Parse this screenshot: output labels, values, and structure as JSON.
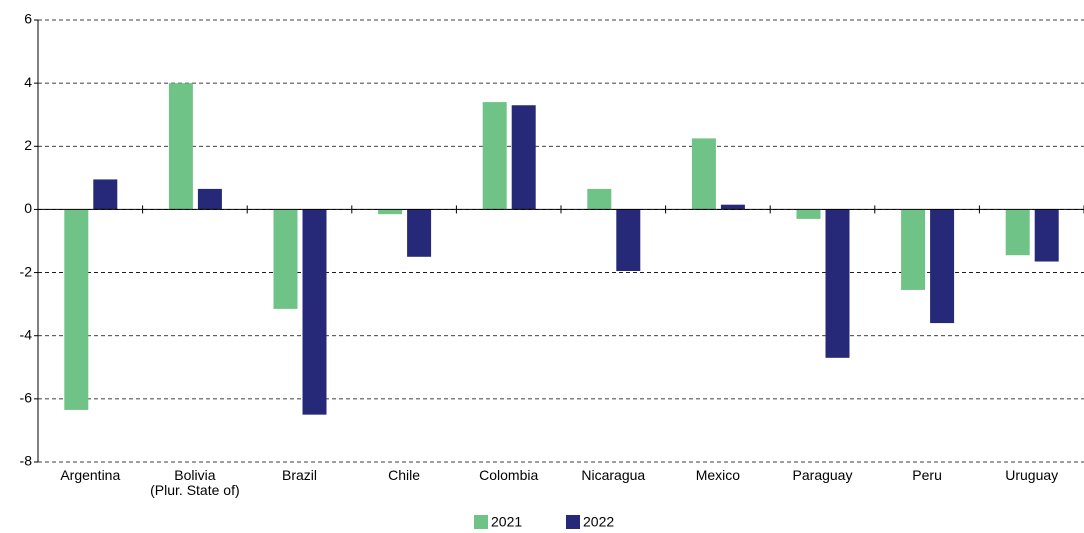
{
  "chart_data": {
    "type": "bar",
    "categories": [
      "Argentina",
      "Bolivia\n(Plur. State of)",
      "Brazil",
      "Chile",
      "Colombia",
      "Nicaragua",
      "Mexico",
      "Paraguay",
      "Peru",
      "Uruguay"
    ],
    "series": [
      {
        "name": "2021",
        "color": "#70c387",
        "values": [
          -6.35,
          4.0,
          -3.15,
          -0.15,
          3.4,
          0.65,
          2.25,
          -0.3,
          -2.55,
          -1.45
        ]
      },
      {
        "name": "2022",
        "color": "#262878",
        "values": [
          0.95,
          0.65,
          -6.5,
          -1.5,
          3.3,
          -1.95,
          0.15,
          -4.7,
          -3.6,
          -1.65
        ]
      }
    ],
    "ylim": [
      -8,
      6
    ],
    "yticks": [
      -8,
      -6,
      -4,
      -2,
      0,
      2,
      4,
      6
    ],
    "grid": true,
    "legend": "bottom"
  }
}
